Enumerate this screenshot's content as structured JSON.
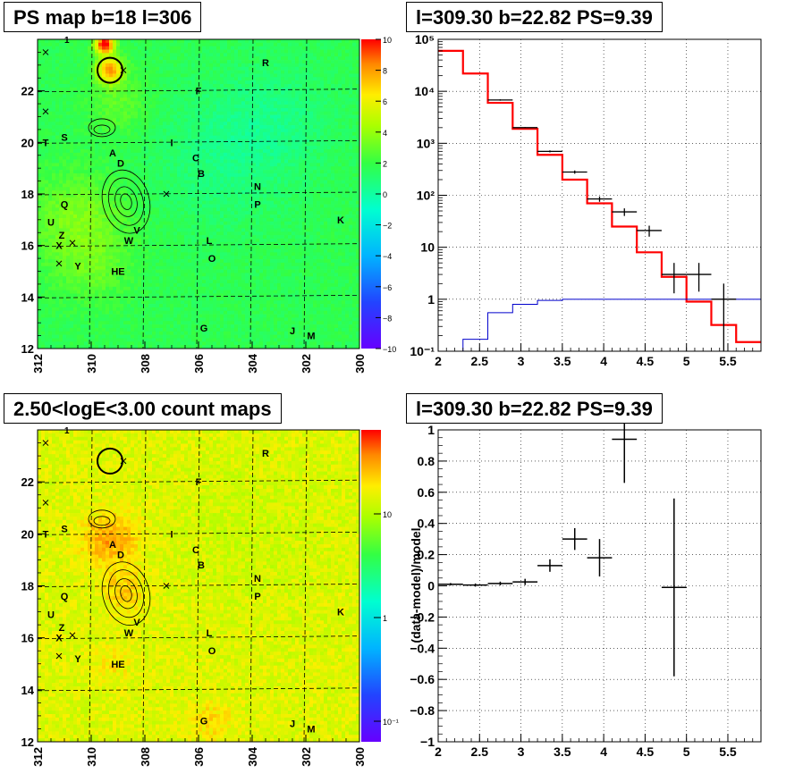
{
  "panels": {
    "ps_map": {
      "title": "PS map b=18 l=306",
      "x_ticks": [
        "312",
        "310",
        "308",
        "306",
        "304",
        "302",
        "300"
      ],
      "y_ticks": [
        "12",
        "14",
        "16",
        "18",
        "20",
        "22"
      ],
      "colorbar_ticks": [
        "10",
        "8",
        "6",
        "4",
        "2",
        "0",
        "−2",
        "−4",
        "−6",
        "−8",
        "−10"
      ],
      "top_label": "1"
    },
    "count_map": {
      "title": "2.50<logE<3.00 count maps",
      "x_ticks": [
        "312",
        "310",
        "308",
        "306",
        "304",
        "302",
        "300"
      ],
      "y_ticks": [
        "12",
        "14",
        "16",
        "18",
        "20",
        "22"
      ],
      "colorbar_ticks": [
        "10",
        "1",
        "10⁻¹"
      ],
      "top_label": "1"
    },
    "spectrum": {
      "title": "l=309.30 b=22.82 PS=9.39"
    },
    "residual": {
      "title": "l=309.30 b=22.82 PS=9.39",
      "ylabel": "(data-model)/model"
    }
  },
  "sources": [
    {
      "name": "A",
      "l": 309.2,
      "b": 19.6
    },
    {
      "name": "B",
      "l": 305.9,
      "b": 18.8
    },
    {
      "name": "C",
      "l": 306.1,
      "b": 19.4
    },
    {
      "name": "D",
      "l": 308.9,
      "b": 19.2
    },
    {
      "name": "F",
      "l": 306.0,
      "b": 22.0
    },
    {
      "name": "G",
      "l": 305.8,
      "b": 12.8
    },
    {
      "name": "HE",
      "l": 309.0,
      "b": 15.0
    },
    {
      "name": "I",
      "l": 307.0,
      "b": 20.0
    },
    {
      "name": "J",
      "l": 302.5,
      "b": 12.7
    },
    {
      "name": "K",
      "l": 300.7,
      "b": 17.0
    },
    {
      "name": "L",
      "l": 305.6,
      "b": 16.2
    },
    {
      "name": "M",
      "l": 301.8,
      "b": 12.5
    },
    {
      "name": "N",
      "l": 303.8,
      "b": 18.3
    },
    {
      "name": "O",
      "l": 305.5,
      "b": 15.5
    },
    {
      "name": "P",
      "l": 303.8,
      "b": 17.6
    },
    {
      "name": "Q",
      "l": 311.0,
      "b": 17.6
    },
    {
      "name": "R",
      "l": 303.5,
      "b": 23.1
    },
    {
      "name": "S",
      "l": 311.0,
      "b": 20.2
    },
    {
      "name": "T",
      "l": 311.7,
      "b": 20.0
    },
    {
      "name": "U",
      "l": 311.5,
      "b": 16.9
    },
    {
      "name": "V",
      "l": 308.3,
      "b": 16.6
    },
    {
      "name": "W",
      "l": 308.6,
      "b": 16.2
    },
    {
      "name": "X",
      "l": 311.2,
      "b": 16.0
    },
    {
      "name": "Y",
      "l": 310.5,
      "b": 15.2
    },
    {
      "name": "Z",
      "l": 311.1,
      "b": 16.4
    }
  ],
  "chart_data": [
    {
      "type": "heatmap",
      "title": "PS map b=18 l=306",
      "xlim": [
        312,
        300
      ],
      "ylim": [
        12,
        24
      ],
      "zlim": [
        -10,
        10
      ],
      "peak": {
        "l": 309.3,
        "b": 22.8,
        "value": 9.39
      }
    },
    {
      "type": "heatmap",
      "title": "2.50<logE<3.00 count maps",
      "xlim": [
        312,
        300
      ],
      "ylim": [
        12,
        24
      ],
      "zscale": "log"
    },
    {
      "type": "line",
      "title": "l=309.30 b=22.82 PS=9.39",
      "xlim": [
        2,
        5.9
      ],
      "ylim": [
        0.1,
        100000
      ],
      "yscale": "log",
      "grid": true,
      "series": [
        {
          "kind": "model_total",
          "color": "#ff0000",
          "edges": [
            2.0,
            2.3,
            2.6,
            2.9,
            3.2,
            3.5,
            3.8,
            4.1,
            4.4,
            4.7,
            5.0,
            5.3,
            5.6,
            5.9
          ],
          "values": [
            60000,
            22000,
            6000,
            1900,
            600,
            200,
            70,
            25,
            8,
            2.7,
            0.9,
            0.32,
            0.15
          ]
        },
        {
          "kind": "source_model",
          "color": "#0000cc",
          "edges": [
            2.0,
            2.3,
            2.6,
            2.9,
            3.2,
            3.5,
            3.8,
            4.1,
            4.4,
            4.7,
            5.0,
            5.3,
            5.6,
            5.9
          ],
          "values": [
            0.09,
            0.17,
            0.55,
            0.8,
            0.95,
            1.0,
            1.0,
            1.0,
            1.0,
            1.0,
            1.0,
            1.0,
            1.0
          ]
        },
        {
          "kind": "data",
          "color": "#000000",
          "points": [
            {
              "x": 2.75,
              "y": 6800,
              "xerr": 0.15,
              "ylo": 6600,
              "yhi": 7000
            },
            {
              "x": 3.05,
              "y": 2000,
              "xerr": 0.15,
              "ylo": 1950,
              "yhi": 2050
            },
            {
              "x": 3.35,
              "y": 700,
              "xerr": 0.15,
              "ylo": 670,
              "yhi": 730
            },
            {
              "x": 3.65,
              "y": 280,
              "xerr": 0.15,
              "ylo": 260,
              "yhi": 300
            },
            {
              "x": 3.95,
              "y": 85,
              "xerr": 0.15,
              "ylo": 75,
              "yhi": 95
            },
            {
              "x": 4.25,
              "y": 48,
              "xerr": 0.15,
              "ylo": 40,
              "yhi": 56
            },
            {
              "x": 4.55,
              "y": 21,
              "xerr": 0.15,
              "ylo": 16,
              "yhi": 26
            },
            {
              "x": 4.85,
              "y": 3,
              "xerr": 0.15,
              "ylo": 1.3,
              "yhi": 5
            },
            {
              "x": 5.15,
              "y": 3,
              "xerr": 0.15,
              "ylo": 1.4,
              "yhi": 5
            },
            {
              "x": 5.45,
              "y": 1.0,
              "xerr": 0.15,
              "ylo": 0.1,
              "yhi": 2
            }
          ]
        }
      ]
    },
    {
      "type": "scatter",
      "title": "l=309.30 b=22.82 PS=9.39",
      "xlabel": "",
      "ylabel": "(data-model)/model",
      "xlim": [
        2,
        5.9
      ],
      "ylim": [
        -1,
        1
      ],
      "grid": true,
      "points": [
        {
          "x": 2.15,
          "y": 0.01,
          "xerr": 0.15,
          "yerr": 0.008
        },
        {
          "x": 2.45,
          "y": 0.005,
          "xerr": 0.15,
          "yerr": 0.01
        },
        {
          "x": 2.75,
          "y": 0.015,
          "xerr": 0.15,
          "yerr": 0.012
        },
        {
          "x": 3.05,
          "y": 0.025,
          "xerr": 0.15,
          "yerr": 0.02
        },
        {
          "x": 3.35,
          "y": 0.13,
          "xerr": 0.15,
          "yerr": 0.04
        },
        {
          "x": 3.65,
          "y": 0.3,
          "xerr": 0.15,
          "yerr": 0.07
        },
        {
          "x": 3.95,
          "y": 0.18,
          "xerr": 0.15,
          "yerr": 0.12
        },
        {
          "x": 4.25,
          "y": 0.94,
          "xerr": 0.15,
          "yerr": 0.28
        },
        {
          "x": 4.85,
          "y": -0.01,
          "xerr": 0.15,
          "yerr": 0.57
        }
      ]
    }
  ]
}
